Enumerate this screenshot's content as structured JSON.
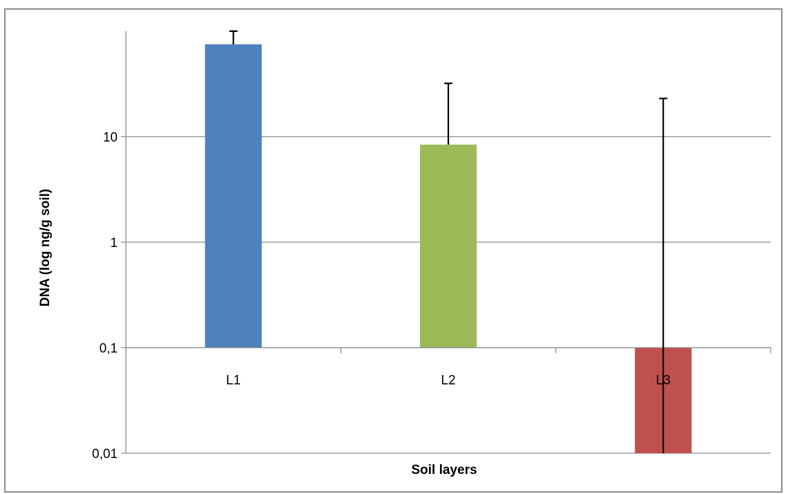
{
  "chart_data": {
    "type": "bar",
    "categories": [
      "L1",
      "L2",
      "L3"
    ],
    "values": [
      75,
      8.4,
      0.01
    ],
    "error_upper": [
      100,
      32,
      23
    ],
    "colors": [
      "#4f81bd",
      "#9bbb59",
      "#c0504d"
    ],
    "xlabel": "Soil layers",
    "ylabel": "DNA (log ng/g soil)",
    "y_scale": "log",
    "ylim": [
      0.01,
      100
    ],
    "baseline": 0.1,
    "y_tick_values": [
      0.01,
      0.1,
      1,
      10
    ],
    "y_tick_labels": [
      "0,01",
      "0,1",
      "1",
      "10"
    ],
    "grid": true,
    "legend": "none"
  }
}
